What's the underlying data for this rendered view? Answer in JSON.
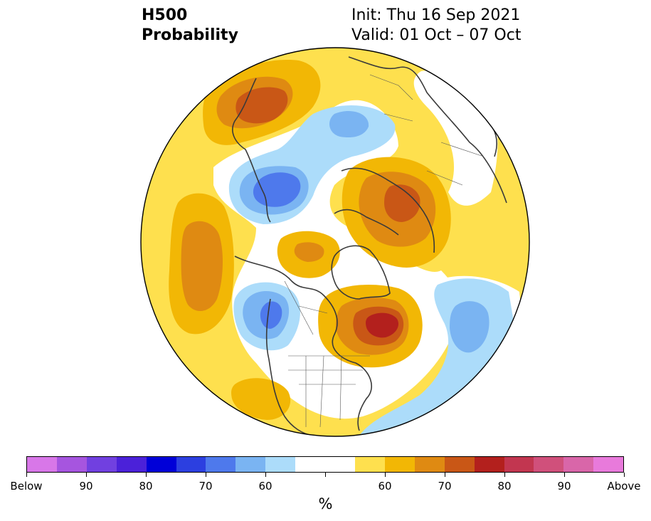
{
  "title": {
    "left_line1": "H500",
    "left_line2": "Probability",
    "right_line1": "Init: Thu 16 Sep 2021",
    "right_line2": "Valid: 01 Oct – 07 Oct"
  },
  "colorbar": {
    "colors": [
      "#d877e8",
      "#a655df",
      "#7140e0",
      "#4b21d9",
      "#0000d8",
      "#2c3fe0",
      "#4e79ec",
      "#7ab4f2",
      "#acdcfa",
      "#ffffff",
      "#ffffff",
      "#fee04e",
      "#f2b705",
      "#df8a12",
      "#c95716",
      "#b3201d",
      "#c23650",
      "#d0507b",
      "#d966a9",
      "#e87adb"
    ],
    "labels": [
      "Below",
      "90",
      "80",
      "70",
      "60",
      "60",
      "70",
      "80",
      "90",
      "Above"
    ],
    "unit": "%"
  },
  "colors": {
    "coastline": "#3a3a3a",
    "border": "#000000"
  }
}
